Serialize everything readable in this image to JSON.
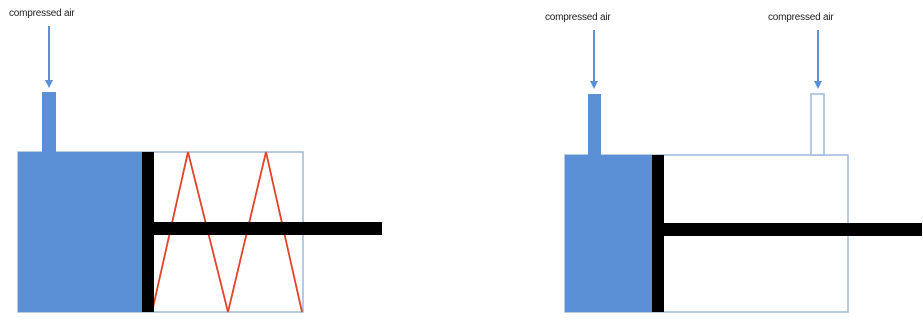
{
  "colors": {
    "air": "#5b8fd6",
    "outline": "#9db8d9",
    "rod": "#000000",
    "spring": "#e0442a",
    "background": "#ffffff"
  },
  "single_acting": {
    "inlet_label": "compressed air"
  },
  "double_acting": {
    "inlet_label_left": "compressed air",
    "inlet_label_right": "compressed air"
  }
}
